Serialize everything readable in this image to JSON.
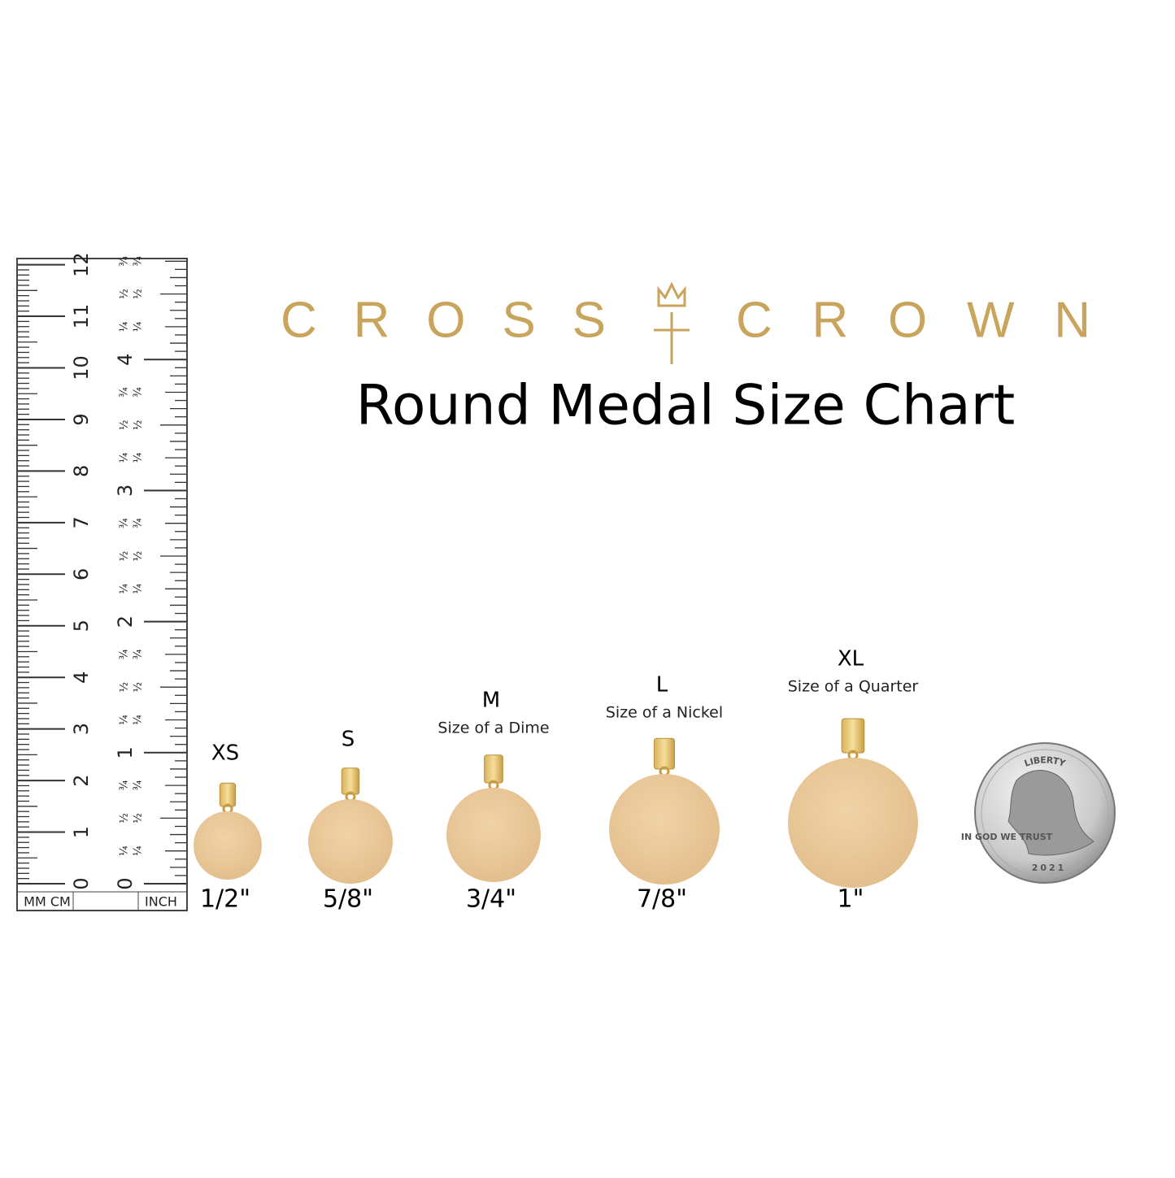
{
  "brand": {
    "left": "CROSS",
    "right": "CROWN"
  },
  "title": "Round Medal Size Chart",
  "ruler": {
    "cm": [
      "0",
      "1",
      "2",
      "3",
      "4",
      "5",
      "6",
      "7",
      "8",
      "9",
      "10",
      "11",
      "12"
    ],
    "inch": [
      "0",
      "1",
      "2",
      "3",
      "4"
    ],
    "fractions": [
      "¼",
      "½",
      "¾"
    ],
    "unit_left": "MM CM",
    "unit_right": "INCH"
  },
  "medals": [
    {
      "size": "XS",
      "dimension": "1/2\""
    },
    {
      "size": "S",
      "dimension": "5/8\""
    },
    {
      "size": "M",
      "note": "Size of a Dime",
      "dimension": "3/4\""
    },
    {
      "size": "L",
      "note": "Size of a Nickel",
      "dimension": "7/8\""
    },
    {
      "size": "XL",
      "note": "Size of a Quarter",
      "dimension": "1\""
    }
  ],
  "coin": {
    "top": "LIBERTY",
    "motto": "IN GOD WE TRUST",
    "year": "2021"
  }
}
